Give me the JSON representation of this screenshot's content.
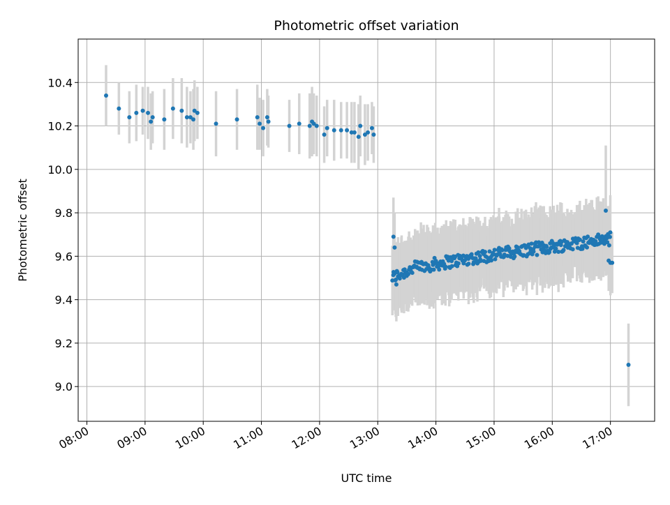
{
  "chart_data": {
    "type": "scatter",
    "title": "Photometric offset variation",
    "xlabel": "UTC time",
    "ylabel": "Photometric offset",
    "x_unit": "hours UTC",
    "xlim": [
      7.85,
      17.76
    ],
    "ylim": [
      8.84,
      10.6
    ],
    "x_ticks": [
      {
        "value": 8,
        "label": "08:00"
      },
      {
        "value": 9,
        "label": "09:00"
      },
      {
        "value": 10,
        "label": "10:00"
      },
      {
        "value": 11,
        "label": "11:00"
      },
      {
        "value": 12,
        "label": "12:00"
      },
      {
        "value": 13,
        "label": "13:00"
      },
      {
        "value": 14,
        "label": "14:00"
      },
      {
        "value": 15,
        "label": "15:00"
      },
      {
        "value": 16,
        "label": "16:00"
      },
      {
        "value": 17,
        "label": "17:00"
      }
    ],
    "y_ticks": [
      {
        "value": 9.0,
        "label": "9.0"
      },
      {
        "value": 9.2,
        "label": "9.2"
      },
      {
        "value": 9.4,
        "label": "9.4"
      },
      {
        "value": 9.6,
        "label": "9.6"
      },
      {
        "value": 9.8,
        "label": "9.8"
      },
      {
        "value": 10.0,
        "label": "10.0"
      },
      {
        "value": 10.2,
        "label": "10.2"
      },
      {
        "value": 10.4,
        "label": "10.4"
      }
    ],
    "grid": true,
    "point_color": "#1f77b4",
    "errorbar_color": "#d3d3d3",
    "morning_points": [
      [
        8.33,
        10.34,
        0.14
      ],
      [
        8.55,
        10.28,
        0.12
      ],
      [
        8.73,
        10.24,
        0.12
      ],
      [
        8.85,
        10.26,
        0.13
      ],
      [
        8.96,
        10.27,
        0.11
      ],
      [
        9.05,
        10.26,
        0.12
      ],
      [
        9.1,
        10.22,
        0.13
      ],
      [
        9.13,
        10.24,
        0.12
      ],
      [
        9.33,
        10.23,
        0.14
      ],
      [
        9.48,
        10.28,
        0.14
      ],
      [
        9.63,
        10.27,
        0.15
      ],
      [
        9.72,
        10.24,
        0.14
      ],
      [
        9.78,
        10.24,
        0.12
      ],
      [
        9.83,
        10.23,
        0.14
      ],
      [
        9.85,
        10.27,
        0.14
      ],
      [
        9.9,
        10.26,
        0.12
      ],
      [
        10.22,
        10.21,
        0.15
      ],
      [
        10.58,
        10.23,
        0.14
      ],
      [
        10.93,
        10.24,
        0.15
      ],
      [
        10.97,
        10.21,
        0.12
      ],
      [
        11.03,
        10.19,
        0.13
      ],
      [
        11.1,
        10.24,
        0.13
      ],
      [
        11.12,
        10.22,
        0.12
      ],
      [
        11.48,
        10.2,
        0.12
      ],
      [
        11.65,
        10.21,
        0.14
      ],
      [
        11.83,
        10.2,
        0.15
      ],
      [
        11.87,
        10.22,
        0.16
      ],
      [
        11.9,
        10.21,
        0.14
      ],
      [
        11.95,
        10.2,
        0.14
      ],
      [
        12.08,
        10.16,
        0.13
      ],
      [
        12.13,
        10.19,
        0.13
      ],
      [
        12.25,
        10.18,
        0.14
      ],
      [
        12.37,
        10.18,
        0.13
      ],
      [
        12.47,
        10.18,
        0.13
      ],
      [
        12.55,
        10.17,
        0.14
      ],
      [
        12.6,
        10.17,
        0.14
      ],
      [
        12.67,
        10.15,
        0.15
      ],
      [
        12.7,
        10.2,
        0.14
      ],
      [
        12.78,
        10.16,
        0.14
      ],
      [
        12.83,
        10.17,
        0.13
      ],
      [
        12.9,
        10.19,
        0.12
      ],
      [
        12.93,
        10.16,
        0.13
      ]
    ],
    "afternoon_trend": {
      "x_start": 13.25,
      "x_end": 17.0,
      "n_points": 300,
      "offset_at_start": 9.52,
      "offset_at_end": 9.68,
      "errorbar_halfwidth": 0.15,
      "scatter": 0.03
    },
    "afternoon_extra_points": [
      [
        13.27,
        9.69,
        0.18
      ],
      [
        13.29,
        9.64,
        0.16
      ],
      [
        13.32,
        9.47,
        0.17
      ],
      [
        16.92,
        9.81,
        0.3
      ],
      [
        16.97,
        9.58,
        0.14
      ],
      [
        17.0,
        9.57,
        0.15
      ],
      [
        17.03,
        9.57,
        0.14
      ],
      [
        17.31,
        9.1,
        0.19
      ]
    ]
  }
}
